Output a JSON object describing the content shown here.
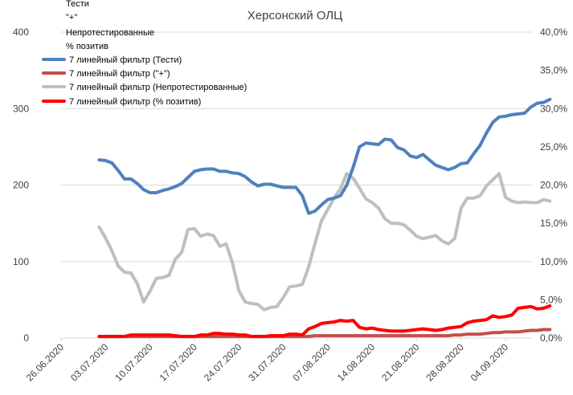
{
  "chart_data": {
    "type": "line",
    "title": "Херсонский ОЛЦ",
    "x_ticks": [
      "26.06.2020",
      "03.07.2020",
      "10.07.2020",
      "17.07.2020",
      "24.07.2020",
      "31.07.2020",
      "07.08.2020",
      "14.08.2020",
      "21.08.2020",
      "28.08.2020",
      "04.09.2020"
    ],
    "y_left": {
      "min": 0,
      "max": 400,
      "ticks": [
        "0",
        "100",
        "200",
        "300",
        "400"
      ]
    },
    "y_right": {
      "min": 0,
      "max": 40,
      "ticks": [
        "0,0%",
        "5,0%",
        "10,0%",
        "15,0%",
        "20,0%",
        "25,0%",
        "30,0%",
        "35,0%",
        "40,0%"
      ]
    },
    "grid": "horizontal",
    "legend_placement": "top-left",
    "legend_plain": [
      "Тести",
      "\"+\"",
      "Непротестированные",
      "% позитив"
    ],
    "series": [
      {
        "name": "7 линейный фильтр (Тести)",
        "color": "#4f81bd",
        "axis": "left",
        "start_date": "2020-07-02",
        "values": [
          233,
          232,
          229,
          219,
          208,
          208,
          202,
          194,
          190,
          190,
          193,
          195,
          198,
          202,
          210,
          218,
          220,
          221,
          221,
          218,
          218,
          216,
          215,
          211,
          204,
          199,
          201,
          201,
          199,
          197,
          197,
          197,
          186,
          163,
          166,
          174,
          181,
          183,
          186,
          200,
          223,
          250,
          255,
          254,
          253,
          260,
          259,
          249,
          246,
          238,
          236,
          240,
          233,
          226,
          223,
          220,
          223,
          228,
          229,
          241,
          252,
          268,
          282,
          289,
          290,
          292,
          293,
          294,
          302,
          307,
          308,
          312
        ]
      },
      {
        "name": "7 линейный фильтр (\"+\")",
        "color": "#c0504d",
        "axis": "left",
        "start_date": "2020-07-02",
        "values": [
          2,
          2,
          2,
          2,
          2,
          2,
          2,
          2,
          2,
          2,
          2,
          2,
          2,
          2,
          2,
          2,
          2,
          2,
          2,
          2,
          2,
          2,
          2,
          2,
          2,
          2,
          2,
          2,
          2,
          2,
          2,
          2,
          2,
          2,
          3,
          3,
          3,
          3,
          3,
          3,
          3,
          3,
          3,
          3,
          3,
          3,
          3,
          3,
          3,
          3,
          3,
          3,
          3,
          3,
          3,
          3,
          4,
          4,
          5,
          5,
          5,
          6,
          7,
          7,
          8,
          8,
          8,
          9,
          10,
          10,
          11,
          11
        ]
      },
      {
        "name": "7 линейный фильтр (Непротестированные)",
        "color": "#bfbfbf",
        "axis": "left",
        "start_date": "2020-07-02",
        "values": [
          145,
          131,
          114,
          94,
          86,
          85,
          71,
          47,
          61,
          78,
          79,
          82,
          103,
          112,
          142,
          143,
          133,
          136,
          134,
          120,
          123,
          98,
          62,
          47,
          45,
          44,
          37,
          40,
          41,
          53,
          67,
          68,
          70,
          93,
          124,
          153,
          168,
          183,
          195,
          215,
          209,
          196,
          182,
          177,
          170,
          156,
          150,
          150,
          148,
          141,
          133,
          130,
          132,
          134,
          127,
          123,
          130,
          170,
          183,
          183,
          186,
          199,
          207,
          215,
          184,
          179,
          177,
          178,
          177,
          177,
          181,
          179
        ]
      },
      {
        "name": "7 линейный фильтр (% позитив)",
        "color": "#ff0000",
        "axis": "right",
        "start_date": "2020-07-02",
        "values": [
          0.2,
          0.2,
          0.2,
          0.2,
          0.2,
          0.4,
          0.4,
          0.4,
          0.4,
          0.4,
          0.4,
          0.4,
          0.3,
          0.2,
          0.2,
          0.2,
          0.4,
          0.4,
          0.6,
          0.6,
          0.5,
          0.5,
          0.4,
          0.4,
          0.2,
          0.2,
          0.2,
          0.3,
          0.3,
          0.3,
          0.5,
          0.5,
          0.4,
          1.2,
          1.5,
          1.9,
          2.0,
          2.1,
          2.3,
          2.2,
          2.3,
          1.4,
          1.2,
          1.3,
          1.1,
          1.0,
          0.9,
          0.9,
          0.9,
          1.0,
          1.1,
          1.2,
          1.1,
          1.0,
          1.1,
          1.3,
          1.4,
          1.5,
          2.0,
          2.2,
          2.3,
          2.4,
          2.9,
          2.7,
          2.8,
          3.0,
          3.9,
          4.0,
          4.1,
          3.8,
          3.9,
          4.2
        ]
      }
    ]
  }
}
